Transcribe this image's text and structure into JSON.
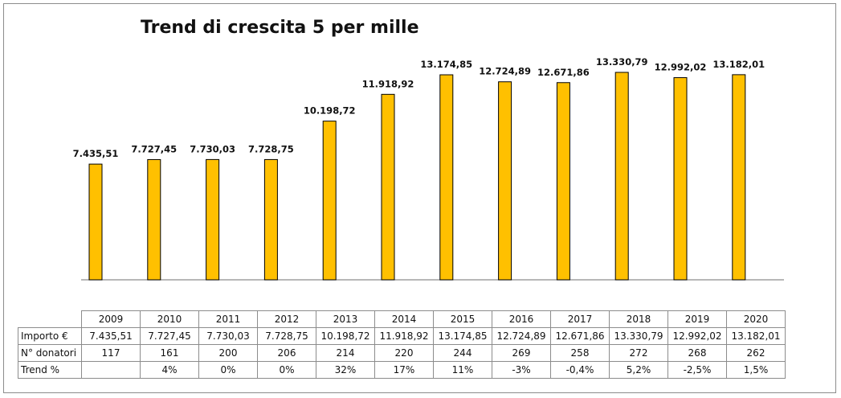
{
  "chart_data": {
    "type": "bar",
    "title": "Trend di crescita 5 per mille",
    "categories": [
      "2009",
      "2010",
      "2011",
      "2012",
      "2013",
      "2014",
      "2015",
      "2016",
      "2017",
      "2018",
      "2019",
      "2020"
    ],
    "values": [
      7435.51,
      7727.45,
      7730.03,
      7728.75,
      10198.72,
      11918.92,
      13174.85,
      12724.89,
      12671.86,
      13330.79,
      12992.02,
      13182.01
    ],
    "value_labels": [
      "7.435,51",
      "7.727,45",
      "7.730,03",
      "7.728,75",
      "10.198,72",
      "11.918,92",
      "13.174,85",
      "12.724,89",
      "12.671,86",
      "13.330,79",
      "12.992,02",
      "13.182,01"
    ],
    "bar_color": "#FFC000",
    "bar_edge_color": "#000000",
    "ylim": [
      0,
      14000
    ],
    "grid": false,
    "legend": "none"
  },
  "table": {
    "rows": [
      {
        "label": "Importo €",
        "cells": [
          "7.435,51",
          "7.727,45",
          "7.730,03",
          "7.728,75",
          "10.198,72",
          "11.918,92",
          "13.174,85",
          "12.724,89",
          "12.671,86",
          "13.330,79",
          "12.992,02",
          "13.182,01"
        ]
      },
      {
        "label": "N° donatori",
        "cells": [
          "117",
          "161",
          "200",
          "206",
          "214",
          "220",
          "244",
          "269",
          "258",
          "272",
          "268",
          "262"
        ]
      },
      {
        "label": "Trend %",
        "cells": [
          "",
          "4%",
          "0%",
          "0%",
          "32%",
          "17%",
          "11%",
          "-3%",
          "-0,4%",
          "5,2%",
          "-2,5%",
          "1,5%"
        ]
      }
    ]
  }
}
